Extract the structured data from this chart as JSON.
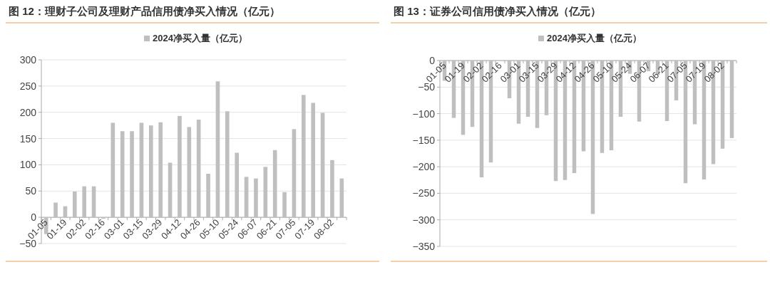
{
  "chart_data": [
    {
      "type": "bar",
      "title": "图 12：理财子公司及理财产品信用债净买入情况（亿元）",
      "categories": [
        "01-05",
        null,
        "01-19",
        null,
        "02-02",
        null,
        "02-16",
        null,
        "03-01",
        null,
        "03-15",
        null,
        "03-29",
        null,
        "04-12",
        null,
        "04-26",
        null,
        "05-10",
        null,
        "05-24",
        null,
        "06-07",
        null,
        "06-21",
        null,
        "07-05",
        null,
        "07-19",
        null,
        "08-02",
        null
      ],
      "series": [
        {
          "name": "2024净买入量（亿元）",
          "color": "#bfbfbf",
          "values": [
            -32,
            28,
            21,
            49,
            59,
            59,
            -1,
            180,
            164,
            164,
            180,
            175,
            181,
            104,
            193,
            172,
            186,
            83,
            259,
            202,
            123,
            77,
            74,
            96,
            128,
            48,
            168,
            233,
            218,
            199,
            109,
            74
          ]
        }
      ],
      "ylim": [
        -50,
        300
      ],
      "yticks": [
        -50,
        0,
        50,
        100,
        150,
        200,
        250,
        300
      ],
      "grid": "y",
      "legend": "top"
    },
    {
      "type": "bar",
      "title": "图 13：证券公司信用债净买入情况（亿元）",
      "categories": [
        "01-05",
        null,
        "01-19",
        null,
        "02-02",
        null,
        "02-16",
        null,
        "03-01",
        null,
        "03-15",
        null,
        "03-29",
        null,
        "04-12",
        null,
        "04-26",
        null,
        "05-10",
        null,
        "05-24",
        null,
        "06-07",
        null,
        "06-21",
        null,
        "07-05",
        null,
        "07-19",
        null,
        "08-02",
        null
      ],
      "series": [
        {
          "name": "2024净买入量（亿元）",
          "color": "#bfbfbf",
          "values": [
            -38,
            -108,
            -140,
            -125,
            -220,
            -192,
            null,
            -71,
            -119,
            -106,
            -127,
            -103,
            -227,
            -225,
            -212,
            -171,
            -289,
            -174,
            -169,
            -106,
            -25,
            -115,
            -20,
            -27,
            -114,
            -75,
            -231,
            -120,
            -224,
            -195,
            -166,
            -146
          ]
        }
      ],
      "ylim": [
        -350,
        0
      ],
      "yticks": [
        -350,
        -300,
        -250,
        -200,
        -150,
        -100,
        -50,
        0
      ],
      "grid": "y",
      "legend": "top"
    }
  ]
}
